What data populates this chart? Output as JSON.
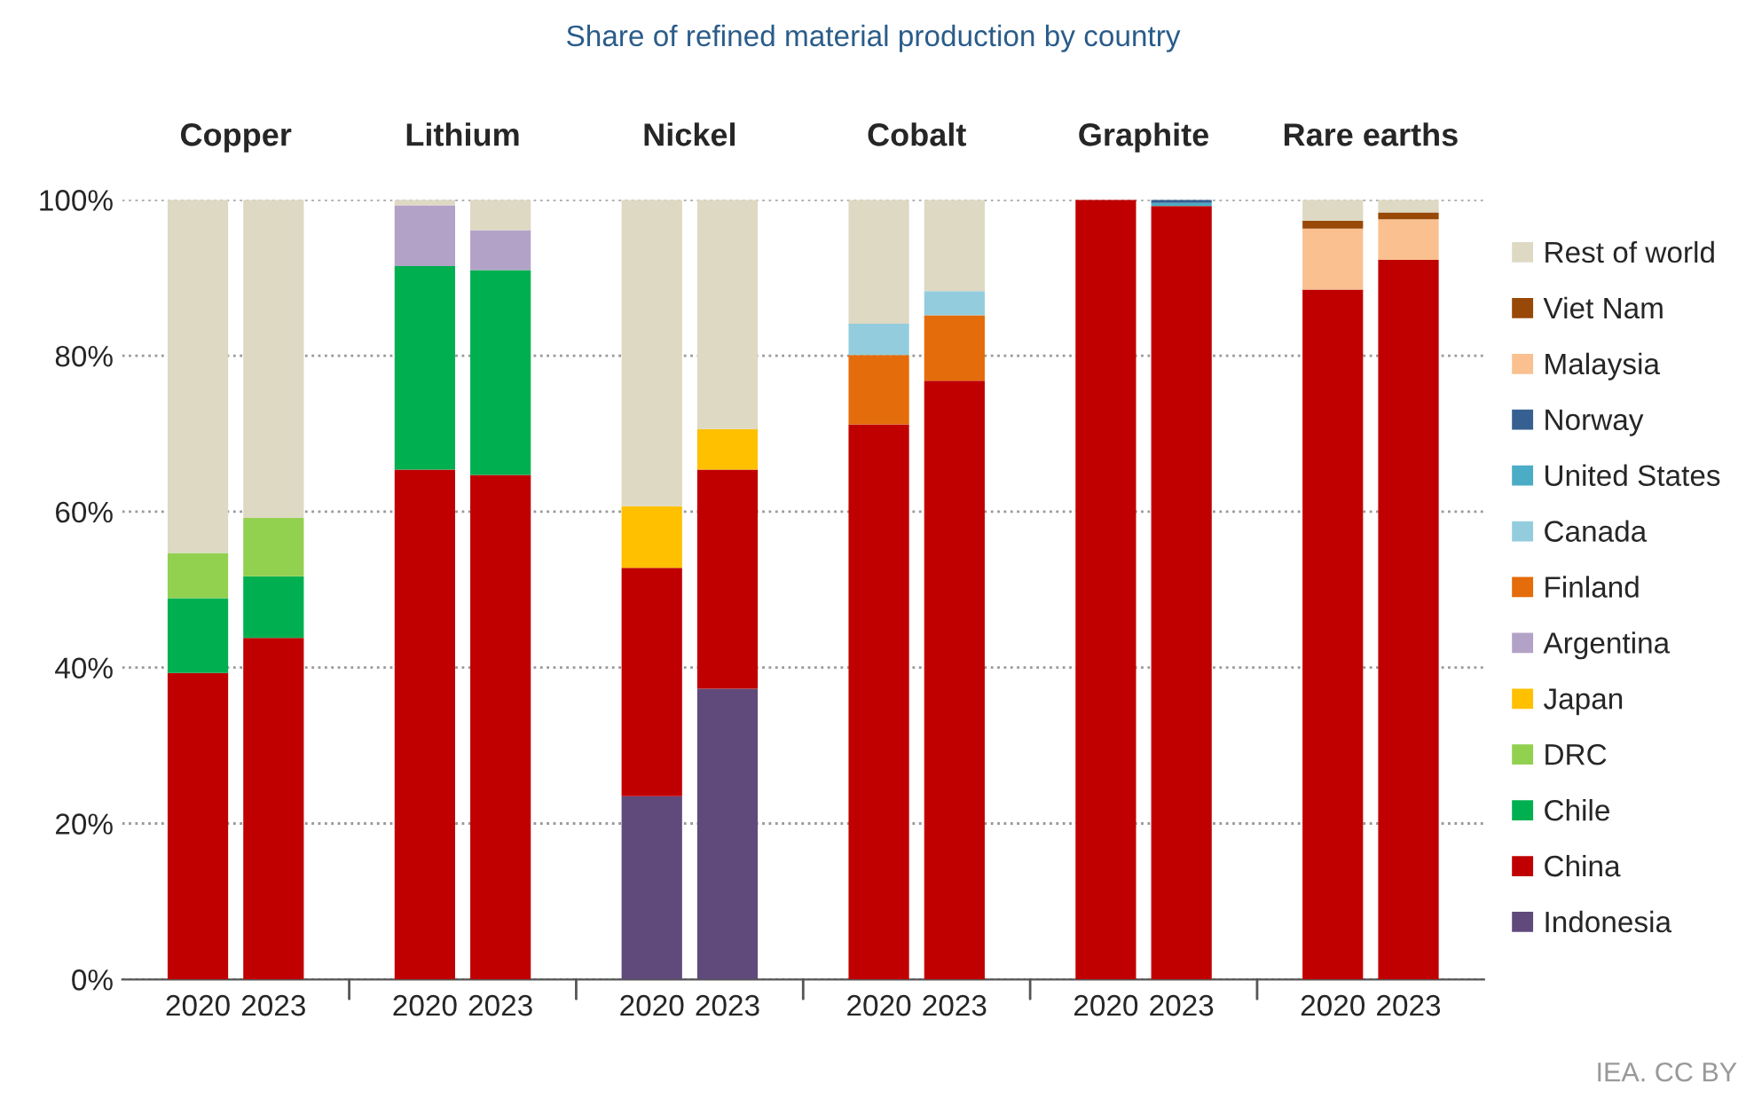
{
  "chart_data": {
    "type": "bar",
    "stacked": true,
    "title": "Share of refined material production by country",
    "categories": [
      "2020",
      "2023",
      "2020",
      "2023",
      "2020",
      "2023",
      "2020",
      "2023",
      "2020",
      "2023",
      "2020",
      "2023"
    ],
    "series": [
      {
        "name": "Indonesia",
        "color": "#604a7b",
        "values": [
          0,
          0,
          0,
          0,
          23.5,
          37.3,
          0,
          0,
          0,
          0,
          0,
          0
        ]
      },
      {
        "name": "China",
        "color": "#c00000",
        "values": [
          39.3,
          43.8,
          65.4,
          64.7,
          29.3,
          28.1,
          71.2,
          76.8,
          100,
          99.2,
          88.5,
          92.3
        ]
      },
      {
        "name": "Chile",
        "color": "#00b050",
        "values": [
          9.6,
          7.9,
          26.1,
          26.3,
          0,
          0,
          0,
          0,
          0,
          0,
          0,
          0
        ]
      },
      {
        "name": "DRC",
        "color": "#92d050",
        "values": [
          5.8,
          7.5,
          0,
          0,
          0,
          0,
          0,
          0,
          0,
          0,
          0,
          0
        ]
      },
      {
        "name": "Japan",
        "color": "#ffc000",
        "values": [
          0,
          0,
          0,
          0,
          7.9,
          5.2,
          0,
          0,
          0,
          0,
          0,
          0
        ]
      },
      {
        "name": "Argentina",
        "color": "#b3a2c7",
        "values": [
          0,
          0,
          7.8,
          5.1,
          0,
          0,
          0,
          0,
          0,
          0,
          0,
          0
        ]
      },
      {
        "name": "Finland",
        "color": "#e46c0a",
        "values": [
          0,
          0,
          0,
          0,
          0,
          0,
          8.9,
          8.4,
          0,
          0,
          0,
          0
        ]
      },
      {
        "name": "Canada",
        "color": "#93cddd",
        "values": [
          0,
          0,
          0,
          0,
          0,
          0,
          4.0,
          3.1,
          0,
          0,
          0,
          0
        ]
      },
      {
        "name": "United States",
        "color": "#4bacc6",
        "values": [
          0,
          0,
          0,
          0,
          0,
          0,
          0,
          0,
          0,
          0.4,
          0,
          0
        ]
      },
      {
        "name": "Norway",
        "color": "#376092",
        "values": [
          0,
          0,
          0,
          0,
          0,
          0,
          0,
          0,
          0,
          0.4,
          0,
          0
        ]
      },
      {
        "name": "Malaysia",
        "color": "#fac090",
        "values": [
          0,
          0,
          0,
          0,
          0,
          0,
          0,
          0,
          0,
          0,
          7.8,
          5.2
        ]
      },
      {
        "name": "Viet Nam",
        "color": "#984807",
        "values": [
          0,
          0,
          0,
          0,
          0,
          0,
          0,
          0,
          0,
          0,
          1.0,
          0.9
        ]
      },
      {
        "name": "Rest of world",
        "color": "#ddd9c3",
        "values": [
          45.3,
          40.8,
          0.7,
          3.9,
          39.3,
          29.4,
          15.9,
          11.7,
          0,
          0,
          2.7,
          1.6
        ]
      }
    ],
    "ylim": [
      0,
      100
    ],
    "yticks": [
      {
        "value": 0,
        "label": "0%"
      },
      {
        "value": 20,
        "label": "20%"
      },
      {
        "value": 40,
        "label": "40%"
      },
      {
        "value": 60,
        "label": "60%"
      },
      {
        "value": 80,
        "label": "80%"
      },
      {
        "value": 100,
        "label": "100%"
      }
    ],
    "grid": "y",
    "legend": "right",
    "annotations": [
      "Copper",
      "Lithium",
      "Nickel",
      "Cobalt",
      "Graphite",
      "Rare earths",
      "IEA. CC BY"
    ]
  }
}
